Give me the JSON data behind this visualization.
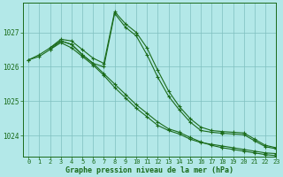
{
  "title": "Graphe pression niveau de la mer (hPa)",
  "background_color": "#b3e8e8",
  "grid_color": "#7fbfbf",
  "line_color": "#1a6b1a",
  "xlim": [
    -0.5,
    23
  ],
  "ylim": [
    1023.4,
    1027.85
  ],
  "yticks": [
    1024,
    1025,
    1026,
    1027
  ],
  "xticks": [
    0,
    1,
    2,
    3,
    4,
    5,
    6,
    7,
    8,
    9,
    10,
    11,
    12,
    13,
    14,
    15,
    16,
    17,
    18,
    19,
    20,
    21,
    22,
    23
  ],
  "series": [
    {
      "x": [
        0,
        1,
        2,
        3,
        4,
        5,
        6,
        7,
        8,
        9,
        10,
        11,
        12,
        13,
        14,
        15,
        16,
        17,
        18,
        19,
        20,
        21,
        22,
        23
      ],
      "y": [
        1026.2,
        1026.3,
        1026.5,
        1026.7,
        1026.55,
        1026.3,
        1026.05,
        1025.75,
        1025.4,
        1025.1,
        1024.8,
        1024.55,
        1024.3,
        1024.15,
        1024.05,
        1023.9,
        1023.8,
        1023.75,
        1023.7,
        1023.65,
        1023.6,
        1023.55,
        1023.5,
        1023.48
      ]
    },
    {
      "x": [
        0,
        1,
        2,
        3,
        4,
        5,
        6,
        7,
        8,
        9,
        10,
        11,
        12,
        13,
        14,
        15,
        16,
        17,
        18,
        19,
        20,
        21,
        22,
        23
      ],
      "y": [
        1026.2,
        1026.35,
        1026.55,
        1026.75,
        1026.65,
        1026.35,
        1026.1,
        1025.8,
        1025.5,
        1025.2,
        1024.9,
        1024.65,
        1024.4,
        1024.2,
        1024.1,
        1023.95,
        1023.82,
        1023.72,
        1023.65,
        1023.6,
        1023.55,
        1023.5,
        1023.45,
        1023.42
      ]
    },
    {
      "x": [
        2,
        3,
        4,
        5,
        6,
        7,
        8,
        9,
        10,
        11,
        12,
        13,
        14,
        15,
        16,
        17,
        18,
        19,
        20,
        21,
        22,
        23
      ],
      "y": [
        1026.5,
        1026.75,
        1026.65,
        1026.35,
        1026.1,
        1026.0,
        1027.55,
        1027.15,
        1026.9,
        1026.35,
        1025.7,
        1025.15,
        1024.75,
        1024.4,
        1024.15,
        1024.1,
        1024.07,
        1024.05,
        1024.03,
        1023.85,
        1023.68,
        1023.62
      ]
    },
    {
      "x": [
        2,
        3,
        4,
        5,
        6,
        7,
        8,
        9,
        10,
        11,
        12,
        13,
        14,
        15,
        16,
        17,
        18,
        19,
        20,
        21,
        22,
        23
      ],
      "y": [
        1026.55,
        1026.8,
        1026.75,
        1026.5,
        1026.25,
        1026.1,
        1027.6,
        1027.25,
        1027.0,
        1026.55,
        1025.9,
        1025.3,
        1024.85,
        1024.5,
        1024.25,
        1024.15,
        1024.12,
        1024.1,
        1024.08,
        1023.9,
        1023.72,
        1023.65
      ]
    }
  ]
}
